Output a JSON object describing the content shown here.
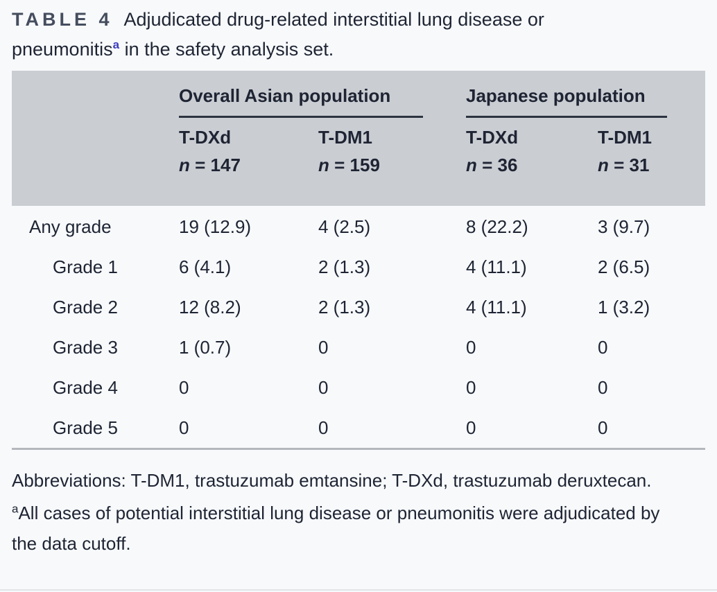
{
  "title": {
    "label": "TABLE 4",
    "before_sup": "Adjudicated drug-related interstitial lung disease or pneumonitis",
    "sup": "a",
    "after_sup": " in the safety analysis set."
  },
  "table": {
    "groups": [
      {
        "label": "Overall Asian population"
      },
      {
        "label": "Japanese population"
      }
    ],
    "columns": [
      {
        "drug": "T-DXd",
        "n_symbol": "n",
        "n_rest": " = 147"
      },
      {
        "drug": "T-DM1",
        "n_symbol": "n",
        "n_rest": " = 159"
      },
      {
        "drug": "T-DXd",
        "n_symbol": "n",
        "n_rest": " = 36"
      },
      {
        "drug": "T-DM1",
        "n_symbol": "n",
        "n_rest": " = 31"
      }
    ],
    "rows": [
      {
        "label": "Any grade",
        "values": [
          "19 (12.9)",
          "4 (2.5)",
          "8 (22.2)",
          "3 (9.7)"
        ]
      },
      {
        "label": "Grade 1",
        "values": [
          "6 (4.1)",
          "2 (1.3)",
          "4 (11.1)",
          "2 (6.5)"
        ]
      },
      {
        "label": "Grade 2",
        "values": [
          "12 (8.2)",
          "2 (1.3)",
          "4 (11.1)",
          "1 (3.2)"
        ]
      },
      {
        "label": "Grade 3",
        "values": [
          "1 (0.7)",
          "0",
          "0",
          "0"
        ]
      },
      {
        "label": "Grade 4",
        "values": [
          "0",
          "0",
          "0",
          "0"
        ]
      },
      {
        "label": "Grade 5",
        "values": [
          "0",
          "0",
          "0",
          "0"
        ]
      }
    ]
  },
  "footnotes": {
    "abbreviations": "Abbreviations: T-DM1, trastuzumab emtansine; T-DXd, trastuzumab deruxtecan.",
    "a_sup": "a",
    "a_text": "All cases of potential interstitial lung disease or pneumonitis were adjudicated by the data cutoff."
  },
  "colors": {
    "header_bg": "#cacdd2",
    "text": "#1e2433",
    "table_number": "#454d5e",
    "title_sup_blue": "#3c3cbe",
    "group_underline": "#2c3240",
    "table_bottom_rule": "#b4b8bd",
    "page_bg": "#f7f9fb"
  }
}
